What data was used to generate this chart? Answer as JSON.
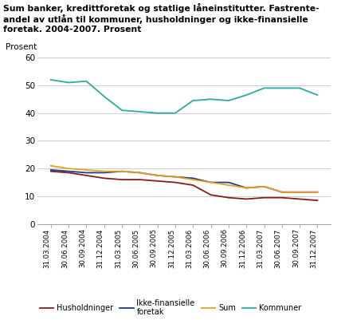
{
  "ylabel": "Prosent",
  "xlabels": [
    "31.03.2004",
    "30.06.2004",
    "30.09.2004",
    "31.12.2004",
    "31.03.2005",
    "30.06.2005",
    "30.09.2005",
    "31.12.2005",
    "31.03.2006",
    "30.06.2006",
    "30.09.2006",
    "31.12.2006",
    "31.03.2007",
    "30.06.2007",
    "30.09.2007",
    "31.12.2007"
  ],
  "series_order": [
    "Husholdninger",
    "Ikke-finansielle foretak",
    "Sum",
    "Kommuner"
  ],
  "series": {
    "Husholdninger": {
      "color": "#8B1A1A",
      "values": [
        19.0,
        18.5,
        17.5,
        16.5,
        16.0,
        16.0,
        15.5,
        15.0,
        14.0,
        10.5,
        9.5,
        9.0,
        9.5,
        9.5,
        9.0,
        8.5
      ]
    },
    "Ikke-finansielle foretak": {
      "color": "#1A3A8B",
      "values": [
        19.5,
        19.0,
        18.5,
        18.5,
        19.0,
        18.5,
        17.5,
        17.0,
        16.5,
        15.0,
        15.0,
        13.0,
        13.5,
        11.5,
        11.5,
        11.5
      ]
    },
    "Sum": {
      "color": "#E8A020",
      "values": [
        21.0,
        20.0,
        19.5,
        19.0,
        19.0,
        18.5,
        17.5,
        17.0,
        16.0,
        15.0,
        14.0,
        13.0,
        13.5,
        11.5,
        11.5,
        11.5
      ]
    },
    "Kommuner": {
      "color": "#2AACA0",
      "values": [
        52.0,
        51.0,
        51.5,
        46.0,
        41.0,
        40.5,
        40.0,
        40.0,
        44.5,
        45.0,
        44.5,
        46.5,
        49.0,
        49.0,
        49.0,
        46.5
      ]
    }
  },
  "ylim": [
    0,
    60
  ],
  "yticks": [
    0,
    10,
    20,
    30,
    40,
    50,
    60
  ],
  "background_color": "#ffffff",
  "grid_color": "#cccccc",
  "title_line1": "Sum banker, kredittforetak og statlige låneinstitutter. Fastrente-",
  "title_line2": "andel av utlån til kommuner, husholdninger og ikke-finansielle",
  "title_line3": "foretak. 2004-2007. Prosent"
}
